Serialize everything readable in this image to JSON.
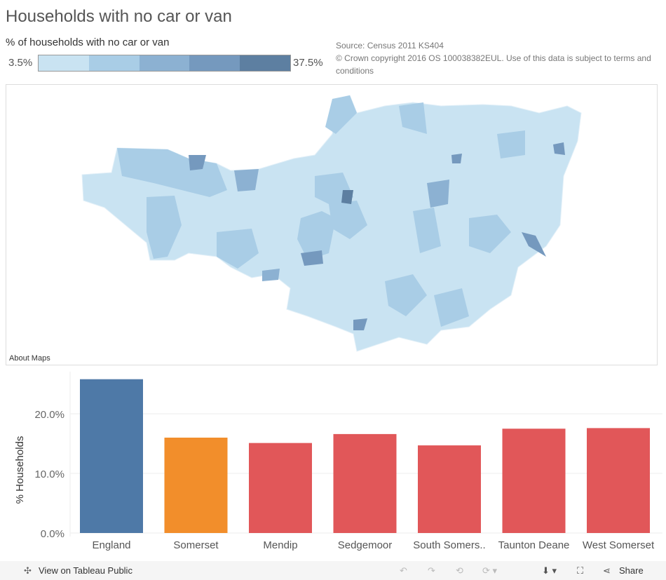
{
  "title": "Households with no car or van",
  "legend": {
    "title": "% of households with no car or van",
    "min": "3.5%",
    "max": "37.5%",
    "colors": [
      "#c9e3f2",
      "#a9cde6",
      "#8cb1d2",
      "#7599be",
      "#5d7fa1"
    ]
  },
  "source": {
    "line1": "Source: Census 2011 KS404",
    "line2": "© Crown copyright 2016 OS 100038382EUL. Use of this data is subject to terms and conditions"
  },
  "map": {
    "about": "About Maps"
  },
  "chart_data": {
    "type": "bar",
    "ylabel": "% Households",
    "categories": [
      "England",
      "Somerset",
      "Mendip",
      "Sedgemoor",
      "South Somers..",
      "Taunton Deane",
      "West Somerset"
    ],
    "values": [
      25.8,
      16.0,
      15.1,
      16.6,
      14.7,
      17.5,
      17.6
    ],
    "colors": [
      "#4e79a7",
      "#f28e2b",
      "#e15759",
      "#e15759",
      "#e15759",
      "#e15759",
      "#e15759"
    ],
    "yticks": [
      {
        "v": 0,
        "label": "0.0%"
      },
      {
        "v": 10,
        "label": "10.0%"
      },
      {
        "v": 20,
        "label": "20.0%"
      }
    ],
    "ylim": [
      0,
      27
    ],
    "grid": true
  },
  "footer": {
    "view": "View on Tableau Public",
    "share": "Share"
  }
}
